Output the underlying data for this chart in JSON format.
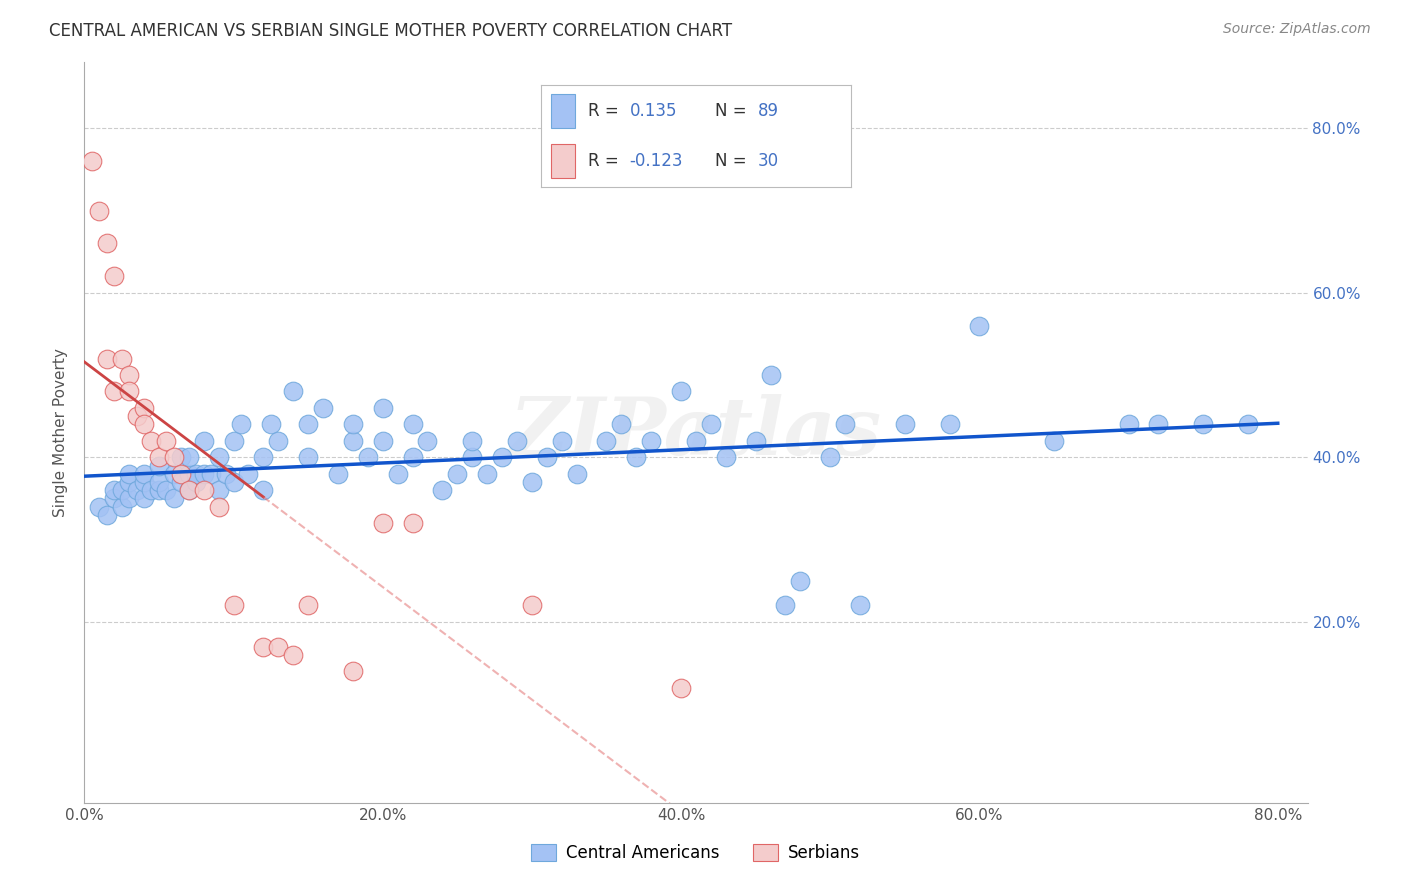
{
  "title": "CENTRAL AMERICAN VS SERBIAN SINGLE MOTHER POVERTY CORRELATION CHART",
  "source": "Source: ZipAtlas.com",
  "ylabel": "Single Mother Poverty",
  "xlim": [
    0.0,
    0.82
  ],
  "ylim": [
    -0.02,
    0.88
  ],
  "ytick_values": [
    0.2,
    0.4,
    0.6,
    0.8
  ],
  "xtick_values": [
    0.0,
    0.2,
    0.4,
    0.6,
    0.8
  ],
  "blue_R": 0.135,
  "blue_N": 89,
  "pink_R": -0.123,
  "pink_N": 30,
  "blue_color": "#a4c2f4",
  "pink_color": "#f4cccc",
  "blue_edge": "#6fa8dc",
  "pink_edge": "#e06666",
  "trend_blue_color": "#1155cc",
  "trend_pink_solid": "#cc4444",
  "trend_pink_dash": "#e06666",
  "watermark": "ZIPatlas",
  "legend_labels": [
    "Central Americans",
    "Serbians"
  ],
  "blue_points_x": [
    0.01,
    0.015,
    0.02,
    0.02,
    0.025,
    0.025,
    0.03,
    0.03,
    0.03,
    0.035,
    0.04,
    0.04,
    0.04,
    0.045,
    0.05,
    0.05,
    0.05,
    0.055,
    0.06,
    0.06,
    0.065,
    0.065,
    0.07,
    0.07,
    0.07,
    0.075,
    0.075,
    0.08,
    0.08,
    0.085,
    0.09,
    0.09,
    0.095,
    0.1,
    0.1,
    0.105,
    0.11,
    0.12,
    0.12,
    0.125,
    0.13,
    0.14,
    0.15,
    0.15,
    0.16,
    0.17,
    0.18,
    0.18,
    0.19,
    0.2,
    0.2,
    0.21,
    0.22,
    0.22,
    0.23,
    0.24,
    0.25,
    0.26,
    0.26,
    0.27,
    0.28,
    0.29,
    0.3,
    0.31,
    0.32,
    0.33,
    0.35,
    0.36,
    0.37,
    0.38,
    0.4,
    0.41,
    0.42,
    0.43,
    0.45,
    0.46,
    0.47,
    0.48,
    0.5,
    0.51,
    0.52,
    0.55,
    0.58,
    0.6,
    0.65,
    0.7,
    0.72,
    0.75,
    0.78
  ],
  "blue_points_y": [
    0.34,
    0.33,
    0.35,
    0.36,
    0.34,
    0.36,
    0.35,
    0.37,
    0.38,
    0.36,
    0.35,
    0.37,
    0.38,
    0.36,
    0.36,
    0.37,
    0.39,
    0.36,
    0.35,
    0.38,
    0.37,
    0.4,
    0.36,
    0.38,
    0.4,
    0.37,
    0.38,
    0.38,
    0.42,
    0.38,
    0.36,
    0.4,
    0.38,
    0.37,
    0.42,
    0.44,
    0.38,
    0.4,
    0.36,
    0.44,
    0.42,
    0.48,
    0.4,
    0.44,
    0.46,
    0.38,
    0.42,
    0.44,
    0.4,
    0.42,
    0.46,
    0.38,
    0.4,
    0.44,
    0.42,
    0.36,
    0.38,
    0.4,
    0.42,
    0.38,
    0.4,
    0.42,
    0.37,
    0.4,
    0.42,
    0.38,
    0.42,
    0.44,
    0.4,
    0.42,
    0.48,
    0.42,
    0.44,
    0.4,
    0.42,
    0.5,
    0.22,
    0.25,
    0.4,
    0.44,
    0.22,
    0.44,
    0.44,
    0.56,
    0.42,
    0.44,
    0.44,
    0.44,
    0.44
  ],
  "pink_points_x": [
    0.005,
    0.01,
    0.015,
    0.015,
    0.02,
    0.02,
    0.025,
    0.03,
    0.03,
    0.035,
    0.04,
    0.04,
    0.045,
    0.05,
    0.055,
    0.06,
    0.065,
    0.07,
    0.08,
    0.09,
    0.1,
    0.12,
    0.13,
    0.14,
    0.15,
    0.18,
    0.2,
    0.22,
    0.3,
    0.4
  ],
  "pink_points_y": [
    0.76,
    0.7,
    0.66,
    0.52,
    0.62,
    0.48,
    0.52,
    0.5,
    0.48,
    0.45,
    0.46,
    0.44,
    0.42,
    0.4,
    0.42,
    0.4,
    0.38,
    0.36,
    0.36,
    0.34,
    0.22,
    0.17,
    0.17,
    0.16,
    0.22,
    0.14,
    0.32,
    0.32,
    0.22,
    0.12
  ]
}
